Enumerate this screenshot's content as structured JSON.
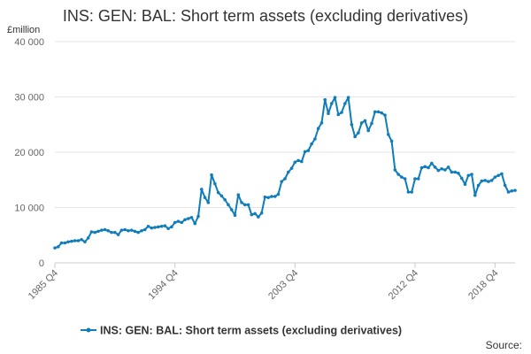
{
  "chart_data": {
    "type": "line",
    "title": "INS: GEN: BAL: Short term assets (excluding derivatives)",
    "unit_label": "£million",
    "ylim": [
      0,
      40000
    ],
    "yticks": [
      0,
      10000,
      20000,
      30000,
      40000
    ],
    "ytick_labels": [
      "0",
      "10 000",
      "20 000",
      "30 000",
      "40 000"
    ],
    "xtick_labels": [
      "1985 Q4",
      "1994 Q4",
      "2003 Q4",
      "2012 Q4",
      "2018 Q4"
    ],
    "xtick_index": [
      0,
      36,
      72,
      108,
      132
    ],
    "grid": "horizontal",
    "legend_position": "bottom",
    "source_label": "Source:",
    "colors": {
      "series": "#0f7dba",
      "grid": "#e6e6e6",
      "axis": "#cccccc"
    },
    "series": [
      {
        "name": "INS: GEN: BAL: Short term assets (excluding derivatives)",
        "values": [
          2700,
          2900,
          3600,
          3600,
          3800,
          3900,
          4000,
          4000,
          4200,
          3800,
          4500,
          5600,
          5500,
          5700,
          5900,
          6000,
          5800,
          5500,
          5500,
          5100,
          5900,
          6000,
          5800,
          5900,
          5700,
          5500,
          5800,
          6000,
          6600,
          6300,
          6400,
          6500,
          6600,
          6700,
          6200,
          6500,
          7300,
          7500,
          7300,
          7800,
          8000,
          8200,
          7100,
          8400,
          13300,
          11800,
          10900,
          15900,
          14300,
          12700,
          12100,
          11400,
          10500,
          9600,
          8600,
          12300,
          10900,
          10500,
          10500,
          8700,
          8900,
          8300,
          9000,
          11900,
          11800,
          12000,
          12000,
          12400,
          14700,
          15200,
          16400,
          17100,
          18200,
          18500,
          18300,
          20100,
          20300,
          21500,
          22400,
          24300,
          25300,
          29500,
          27000,
          28800,
          29900,
          26800,
          27200,
          28800,
          29900,
          25000,
          22800,
          23500,
          25300,
          25700,
          23900,
          25200,
          27300,
          27300,
          27100,
          26700,
          23200,
          22000,
          16800,
          16000,
          15500,
          15200,
          12800,
          12800,
          15200,
          15200,
          17200,
          17400,
          17200,
          18000,
          17300,
          16700,
          17000,
          16800,
          17300,
          16400,
          16400,
          16200,
          15300,
          14200,
          15800,
          16000,
          12200,
          14000,
          14800,
          14900,
          14700,
          14900,
          15500,
          15800,
          16100,
          14000,
          12800,
          13000,
          13100
        ]
      }
    ]
  }
}
